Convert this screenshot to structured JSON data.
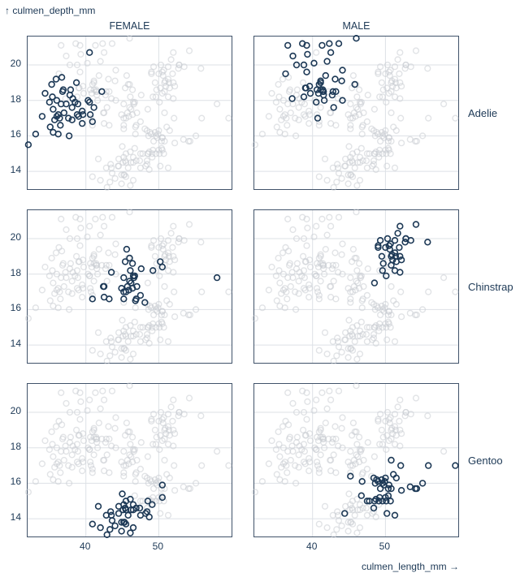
{
  "labels": {
    "y_title": "↑ culmen_depth_mm",
    "x_title": "culmen_length_mm →"
  },
  "facets": {
    "columns": [
      "FEMALE",
      "MALE"
    ],
    "rows": [
      "Adelie",
      "Chinstrap",
      "Gentoo"
    ]
  },
  "colors": {
    "ink": "#1d3956",
    "highlight_stroke": "#1d3956",
    "background_stroke": "#c9ccd2",
    "frame": "#41536a",
    "grid": "#dde1e6"
  },
  "chart_data": {
    "type": "scatter",
    "xlabel": "culmen_length_mm",
    "ylabel": "culmen_depth_mm",
    "facet_x": "sex",
    "facet_y": "species",
    "facet_mode": "highlight current facet, all other groups shown muted",
    "x_domain": [
      32.0,
      60.0
    ],
    "y_domain": [
      13.0,
      21.6
    ],
    "x_ticks": [
      40,
      50
    ],
    "y_ticks": [
      14,
      16,
      18,
      20
    ],
    "grid": true,
    "marker": "open-circle",
    "groups": [
      {
        "species": "Adelie",
        "sex": "FEMALE",
        "points": [
          [
            39.5,
            17.4
          ],
          [
            40.3,
            18.0
          ],
          [
            36.7,
            19.3
          ],
          [
            38.9,
            17.8
          ],
          [
            41.1,
            17.6
          ],
          [
            36.6,
            17.8
          ],
          [
            38.7,
            19.0
          ],
          [
            34.4,
            18.4
          ],
          [
            37.8,
            18.3
          ],
          [
            35.9,
            19.2
          ],
          [
            35.3,
            18.9
          ],
          [
            37.9,
            18.6
          ],
          [
            38.2,
            18.1
          ],
          [
            38.8,
            17.2
          ],
          [
            35.7,
            16.9
          ],
          [
            36.2,
            17.2
          ],
          [
            35.1,
            16.5
          ],
          [
            36.0,
            18.0
          ],
          [
            37.6,
            17.0
          ],
          [
            36.4,
            17.0
          ],
          [
            38.1,
            16.9
          ],
          [
            36.9,
            18.6
          ],
          [
            39.5,
            16.7
          ],
          [
            37.0,
            17.3
          ],
          [
            36.5,
            16.6
          ],
          [
            35.0,
            17.9
          ],
          [
            34.0,
            17.1
          ],
          [
            37.3,
            17.8
          ],
          [
            36.8,
            18.5
          ],
          [
            35.5,
            17.5
          ],
          [
            38.1,
            17.6
          ],
          [
            35.4,
            18.2
          ],
          [
            40.5,
            17.9
          ],
          [
            39.0,
            17.1
          ],
          [
            40.5,
            20.7
          ],
          [
            39.6,
            17.2
          ],
          [
            40.9,
            16.8
          ],
          [
            36.2,
            16.1
          ],
          [
            42.2,
            18.5
          ],
          [
            37.7,
            16.0
          ],
          [
            35.5,
            16.2
          ],
          [
            33.1,
            16.1
          ],
          [
            40.6,
            17.2
          ],
          [
            32.1,
            15.5
          ],
          [
            38.5,
            17.9
          ],
          [
            36.0,
            17.1
          ]
        ]
      },
      {
        "species": "Adelie",
        "sex": "MALE",
        "points": [
          [
            39.1,
            18.7
          ],
          [
            39.2,
            19.6
          ],
          [
            39.3,
            20.6
          ],
          [
            38.6,
            21.2
          ],
          [
            36.6,
            21.1
          ],
          [
            42.5,
            20.7
          ],
          [
            46.0,
            21.5
          ],
          [
            37.8,
            20.0
          ],
          [
            38.8,
            20.0
          ],
          [
            42.3,
            21.2
          ],
          [
            39.2,
            21.1
          ],
          [
            42.0,
            20.2
          ],
          [
            41.1,
            19.1
          ],
          [
            42.7,
            18.3
          ],
          [
            44.1,
            19.7
          ],
          [
            39.6,
            18.8
          ],
          [
            41.3,
            21.1
          ],
          [
            41.1,
            19.0
          ],
          [
            41.6,
            18.0
          ],
          [
            41.1,
            18.6
          ],
          [
            41.8,
            19.4
          ],
          [
            42.8,
            18.5
          ],
          [
            43.2,
            18.5
          ],
          [
            40.8,
            18.4
          ],
          [
            39.0,
            18.7
          ],
          [
            41.4,
            18.5
          ],
          [
            41.5,
            18.5
          ],
          [
            39.7,
            18.4
          ],
          [
            42.9,
            17.6
          ],
          [
            43.1,
            19.2
          ],
          [
            45.8,
            18.9
          ],
          [
            40.2,
            20.1
          ],
          [
            41.4,
            18.6
          ],
          [
            44.1,
            18.0
          ],
          [
            40.6,
            18.6
          ],
          [
            40.5,
            17.9
          ],
          [
            37.2,
            18.1
          ],
          [
            40.9,
            18.9
          ],
          [
            40.7,
            17.0
          ],
          [
            37.3,
            20.5
          ],
          [
            43.6,
            21.2
          ],
          [
            41.5,
            18.3
          ],
          [
            44.0,
            19.1
          ],
          [
            36.3,
            19.5
          ],
          [
            38.8,
            18.2
          ]
        ]
      },
      {
        "species": "Chinstrap",
        "sex": "FEMALE",
        "points": [
          [
            46.5,
            17.9
          ],
          [
            45.4,
            18.7
          ],
          [
            45.2,
            17.8
          ],
          [
            46.1,
            18.2
          ],
          [
            46.0,
            18.9
          ],
          [
            46.6,
            17.8
          ],
          [
            47.0,
            17.3
          ],
          [
            45.9,
            17.1
          ],
          [
            46.4,
            17.2
          ],
          [
            42.4,
            17.3
          ],
          [
            45.7,
            17.3
          ],
          [
            45.2,
            16.6
          ],
          [
            46.2,
            17.5
          ],
          [
            45.5,
            17.0
          ],
          [
            46.8,
            16.5
          ],
          [
            45.6,
            19.4
          ],
          [
            46.9,
            16.6
          ],
          [
            47.5,
            16.8
          ],
          [
            43.2,
            16.6
          ],
          [
            50.5,
            18.4
          ],
          [
            49.2,
            18.2
          ],
          [
            42.5,
            16.7
          ],
          [
            48.1,
            16.4
          ],
          [
            50.2,
            18.7
          ],
          [
            58.0,
            17.8
          ],
          [
            46.4,
            18.6
          ],
          [
            40.9,
            16.6
          ],
          [
            42.5,
            17.3
          ],
          [
            47.6,
            18.3
          ],
          [
            43.5,
            18.1
          ],
          [
            46.7,
            17.9
          ],
          [
            45.2,
            17.0
          ],
          [
            44.9,
            17.2
          ],
          [
            46.0,
            17.6
          ]
        ]
      },
      {
        "species": "Chinstrap",
        "sex": "MALE",
        "points": [
          [
            50.0,
            19.5
          ],
          [
            51.3,
            19.2
          ],
          [
            52.7,
            19.8
          ],
          [
            51.3,
            18.2
          ],
          [
            51.3,
            19.9
          ],
          [
            51.7,
            20.3
          ],
          [
            52.0,
            18.1
          ],
          [
            50.5,
            19.6
          ],
          [
            50.3,
            20.0
          ],
          [
            49.5,
            19.0
          ],
          [
            52.8,
            20.0
          ],
          [
            54.2,
            20.8
          ],
          [
            51.0,
            18.8
          ],
          [
            49.7,
            18.6
          ],
          [
            50.8,
            18.5
          ],
          [
            49.0,
            19.5
          ],
          [
            52.2,
            18.8
          ],
          [
            49.3,
            19.9
          ],
          [
            50.7,
            19.7
          ],
          [
            52.0,
            20.7
          ],
          [
            53.5,
            19.9
          ],
          [
            51.5,
            18.7
          ],
          [
            49.6,
            18.2
          ],
          [
            51.9,
            19.5
          ],
          [
            55.8,
            19.8
          ],
          [
            50.8,
            19.0
          ],
          [
            50.1,
            17.9
          ],
          [
            49.0,
            19.6
          ],
          [
            48.5,
            17.5
          ],
          [
            52.0,
            19.0
          ],
          [
            50.9,
            19.1
          ],
          [
            50.6,
            19.4
          ],
          [
            51.4,
            19.0
          ],
          [
            52.8,
            20.0
          ]
        ]
      },
      {
        "species": "Gentoo",
        "sex": "FEMALE",
        "points": [
          [
            46.1,
            13.2
          ],
          [
            48.7,
            14.1
          ],
          [
            46.5,
            13.5
          ],
          [
            45.4,
            14.6
          ],
          [
            43.3,
            13.4
          ],
          [
            46.1,
            15.1
          ],
          [
            45.1,
            14.5
          ],
          [
            44.9,
            13.3
          ],
          [
            45.5,
            13.7
          ],
          [
            48.2,
            14.3
          ],
          [
            44.0,
            13.6
          ],
          [
            46.5,
            14.5
          ],
          [
            45.3,
            13.8
          ],
          [
            46.2,
            14.5
          ],
          [
            48.5,
            15.0
          ],
          [
            44.5,
            14.3
          ],
          [
            48.4,
            14.4
          ],
          [
            45.8,
            14.2
          ],
          [
            42.0,
            13.5
          ],
          [
            42.9,
            13.1
          ],
          [
            41.7,
            14.7
          ],
          [
            42.8,
            14.2
          ],
          [
            40.9,
            13.7
          ],
          [
            45.2,
            13.8
          ],
          [
            49.1,
            14.8
          ],
          [
            44.5,
            14.7
          ],
          [
            47.4,
            14.6
          ],
          [
            45.5,
            15.0
          ],
          [
            47.5,
            14.2
          ],
          [
            43.5,
            14.2
          ],
          [
            50.5,
            15.2
          ],
          [
            45.2,
            14.8
          ],
          [
            46.5,
            14.8
          ],
          [
            45.0,
            15.4
          ],
          [
            43.6,
            13.9
          ],
          [
            44.9,
            13.8
          ],
          [
            46.9,
            14.6
          ],
          [
            50.5,
            15.9
          ],
          [
            43.4,
            14.4
          ],
          [
            45.5,
            14.5
          ]
        ]
      },
      {
        "species": "Gentoo",
        "sex": "MALE",
        "points": [
          [
            50.0,
            16.3
          ],
          [
            50.0,
            15.2
          ],
          [
            48.7,
            15.1
          ],
          [
            50.2,
            14.3
          ],
          [
            47.8,
            15.0
          ],
          [
            46.7,
            15.3
          ],
          [
            50.5,
            15.9
          ],
          [
            49.6,
            16.0
          ],
          [
            50.8,
            15.7
          ],
          [
            50.4,
            15.3
          ],
          [
            49.5,
            16.2
          ],
          [
            49.8,
            15.9
          ],
          [
            49.1,
            15.0
          ],
          [
            51.5,
            16.3
          ],
          [
            55.1,
            16.0
          ],
          [
            54.3,
            15.7
          ],
          [
            50.7,
            15.0
          ],
          [
            54.1,
            15.7
          ],
          [
            51.3,
            14.2
          ],
          [
            49.0,
            16.1
          ],
          [
            48.4,
            14.6
          ],
          [
            48.6,
            16.0
          ],
          [
            51.1,
            16.5
          ],
          [
            48.8,
            16.2
          ],
          [
            50.1,
            15.0
          ],
          [
            48.5,
            15.0
          ],
          [
            49.6,
            15.0
          ],
          [
            50.8,
            17.3
          ],
          [
            53.4,
            15.8
          ],
          [
            49.3,
            15.7
          ],
          [
            45.2,
            16.4
          ],
          [
            49.9,
            16.1
          ],
          [
            46.8,
            16.1
          ],
          [
            55.9,
            17.0
          ],
          [
            59.6,
            17.0
          ],
          [
            44.4,
            14.3
          ],
          [
            47.5,
            15.0
          ],
          [
            48.4,
            16.3
          ],
          [
            52.1,
            17.0
          ],
          [
            52.2,
            15.6
          ],
          [
            49.2,
            15.2
          ],
          [
            50.4,
            15.7
          ]
        ]
      }
    ]
  }
}
